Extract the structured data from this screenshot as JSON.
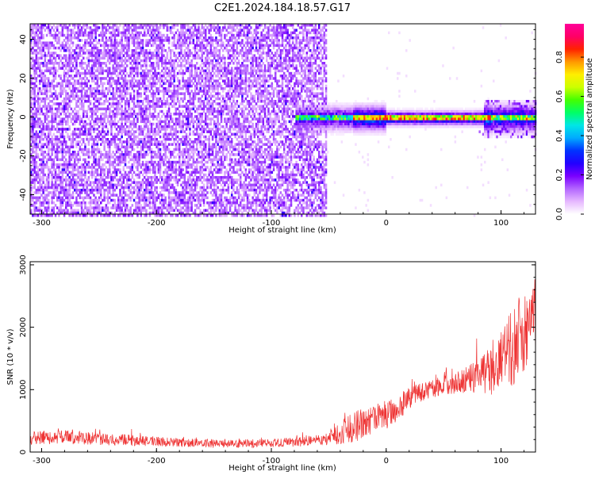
{
  "title": "C2E1.2024.184.18.57.G17",
  "chart_data": [
    {
      "type": "heatmap",
      "xlabel": "Height of straight line (km)",
      "ylabel": "Frequency (Hz)",
      "xlim": [
        -310,
        130
      ],
      "ylim": [
        -50,
        48
      ],
      "x_ticks": [
        -300,
        -200,
        -100,
        0,
        100
      ],
      "y_ticks": [
        -40,
        -20,
        0,
        20,
        40
      ],
      "colorbar": {
        "label": "Normalized spectral amplitude",
        "range": [
          0,
          0.97
        ],
        "ticks": [
          0,
          0.2,
          0.4,
          0.6,
          0.8
        ],
        "colormap": [
          "#ffffff",
          "#e6b8ff",
          "#b366ff",
          "#7a00ff",
          "#2200ff",
          "#0033ff",
          "#00aaff",
          "#00e6e6",
          "#00ff66",
          "#44ff00",
          "#ccff00",
          "#ffee00",
          "#ff9900",
          "#ff2200",
          "#ff0066",
          "#ff0099"
        ]
      },
      "regions": [
        {
          "x_range": [
            -310,
            -52
          ],
          "freq_range": [
            -50,
            48
          ],
          "amplitude": 0.05,
          "description_key": "broadband noise"
        },
        {
          "x_range": [
            -80,
            130
          ],
          "freq_center": 0,
          "amplitude": 0.9,
          "description_key": "narrow carrier near 0 Hz"
        }
      ]
    },
    {
      "type": "line",
      "xlabel": "Height of straight line (km)",
      "ylabel": "SNR (10 * v/v)",
      "xlim": [
        -310,
        130
      ],
      "ylim": [
        0,
        3050
      ],
      "x_ticks": [
        -300,
        -200,
        -100,
        0,
        100
      ],
      "y_ticks": [
        0,
        1000,
        2000,
        3000
      ],
      "series": [
        {
          "color": "#ee3333",
          "x": [
            -310,
            -280,
            -250,
            -220,
            -190,
            -160,
            -130,
            -100,
            -70,
            -50,
            -40,
            -30,
            -20,
            -10,
            0,
            10,
            20,
            30,
            40,
            50,
            60,
            70,
            80,
            90,
            100,
            110,
            120,
            130
          ],
          "y": [
            230,
            240,
            210,
            190,
            160,
            140,
            130,
            140,
            170,
            210,
            300,
            400,
            450,
            520,
            580,
            700,
            850,
            950,
            1020,
            1080,
            1100,
            1150,
            1220,
            1300,
            1500,
            1700,
            1900,
            2100
          ],
          "spread": [
            110,
            110,
            100,
            90,
            70,
            70,
            70,
            70,
            80,
            100,
            200,
            250,
            250,
            220,
            220,
            200,
            180,
            160,
            160,
            160,
            170,
            200,
            280,
            400,
            550,
            650,
            700,
            700
          ]
        }
      ]
    }
  ]
}
